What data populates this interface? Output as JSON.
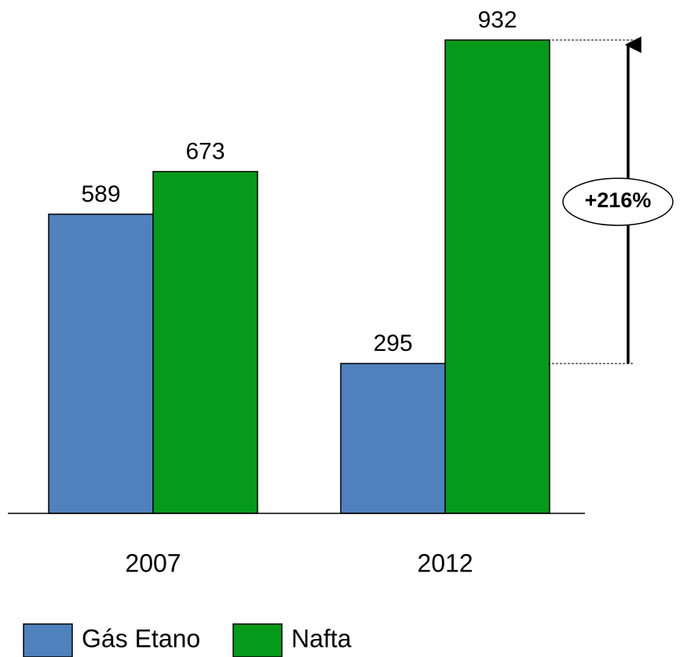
{
  "chart_data": {
    "type": "bar",
    "categories": [
      "2007",
      "2012"
    ],
    "series": [
      {
        "name": "Gás Etano",
        "color": "#4f81bd",
        "values": [
          589,
          295
        ]
      },
      {
        "name": "Nafta",
        "color": "#069a1a",
        "values": [
          673,
          932
        ]
      }
    ],
    "annotation": "+216%"
  }
}
